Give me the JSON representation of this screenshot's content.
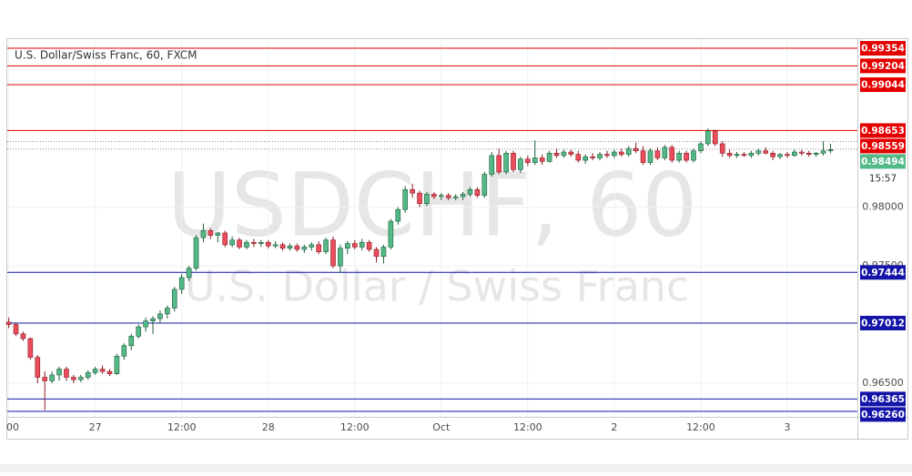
{
  "chart_data": {
    "type": "candlestick",
    "title": "U.S. Dollar/Swiss Franc, 60, FXCM",
    "watermark": [
      "USDCHF, 60",
      "U.S. Dollar / Swiss Franc"
    ],
    "categories": [
      "00",
      null,
      null,
      null,
      null,
      null,
      null,
      null,
      null,
      null,
      null,
      null,
      "27",
      null,
      null,
      null,
      null,
      null,
      null,
      null,
      null,
      null,
      null,
      null,
      "12:00",
      null,
      null,
      null,
      null,
      null,
      null,
      null,
      null,
      null,
      null,
      null,
      "28",
      null,
      null,
      null,
      null,
      null,
      null,
      null,
      null,
      null,
      null,
      null,
      "12:00",
      null,
      null,
      null,
      null,
      null,
      null,
      null,
      null,
      null,
      null,
      null,
      "Oct",
      null,
      null,
      null,
      null,
      null,
      null,
      null,
      null,
      null,
      null,
      null,
      "12:00",
      null,
      null,
      null,
      null,
      null,
      null,
      null,
      null,
      null,
      null,
      null,
      "2",
      null,
      null,
      null,
      null,
      null,
      null,
      null,
      null,
      null,
      null,
      null,
      "12:00",
      null,
      null,
      null,
      null,
      null,
      null,
      null,
      null,
      null,
      null,
      null,
      "3",
      null,
      null,
      null,
      null,
      null,
      null
    ],
    "ohlc": [
      [
        0.9702,
        0.9706,
        0.9697,
        0.97
      ],
      [
        0.97,
        0.9702,
        0.969,
        0.9692
      ],
      [
        0.9692,
        0.9694,
        0.9686,
        0.9688
      ],
      [
        0.9688,
        0.9689,
        0.967,
        0.9672
      ],
      [
        0.9672,
        0.9674,
        0.965,
        0.9655
      ],
      [
        0.9655,
        0.966,
        0.9627,
        0.9652
      ],
      [
        0.9652,
        0.966,
        0.965,
        0.9657
      ],
      [
        0.9657,
        0.9664,
        0.9652,
        0.9662
      ],
      [
        0.9662,
        0.9664,
        0.9652,
        0.9655
      ],
      [
        0.9655,
        0.9657,
        0.965,
        0.9653
      ],
      [
        0.9653,
        0.9657,
        0.9651,
        0.9655
      ],
      [
        0.9655,
        0.9661,
        0.9653,
        0.9659
      ],
      [
        0.9659,
        0.9664,
        0.9657,
        0.9662
      ],
      [
        0.9662,
        0.9665,
        0.9658,
        0.966
      ],
      [
        0.966,
        0.9662,
        0.9656,
        0.9658
      ],
      [
        0.9658,
        0.9675,
        0.9657,
        0.9673
      ],
      [
        0.9673,
        0.9684,
        0.967,
        0.9682
      ],
      [
        0.9682,
        0.9692,
        0.9678,
        0.969
      ],
      [
        0.969,
        0.97,
        0.9688,
        0.9698
      ],
      [
        0.9698,
        0.9706,
        0.9694,
        0.9703
      ],
      [
        0.9703,
        0.9707,
        0.9692,
        0.9705
      ],
      [
        0.9705,
        0.9712,
        0.9701,
        0.9709
      ],
      [
        0.9709,
        0.9716,
        0.9705,
        0.9714
      ],
      [
        0.9714,
        0.9732,
        0.9711,
        0.973
      ],
      [
        0.973,
        0.9743,
        0.9726,
        0.974
      ],
      [
        0.974,
        0.975,
        0.9737,
        0.9748
      ],
      [
        0.9748,
        0.9776,
        0.9746,
        0.9774
      ],
      [
        0.9774,
        0.9786,
        0.977,
        0.978
      ],
      [
        0.978,
        0.9782,
        0.9773,
        0.9776
      ],
      [
        0.9776,
        0.9779,
        0.977,
        0.9778
      ],
      [
        0.9778,
        0.978,
        0.9766,
        0.9768
      ],
      [
        0.9768,
        0.9775,
        0.9766,
        0.9772
      ],
      [
        0.9772,
        0.9774,
        0.9764,
        0.9766
      ],
      [
        0.9766,
        0.9772,
        0.9764,
        0.977
      ],
      [
        0.977,
        0.9773,
        0.9766,
        0.9769
      ],
      [
        0.9769,
        0.9772,
        0.9766,
        0.977
      ],
      [
        0.977,
        0.9772,
        0.9765,
        0.9767
      ],
      [
        0.9767,
        0.9771,
        0.9765,
        0.9768
      ],
      [
        0.9768,
        0.977,
        0.9763,
        0.9765
      ],
      [
        0.9765,
        0.9769,
        0.9763,
        0.9767
      ],
      [
        0.9767,
        0.9769,
        0.9762,
        0.9764
      ],
      [
        0.9764,
        0.9768,
        0.9761,
        0.9766
      ],
      [
        0.9766,
        0.977,
        0.9763,
        0.9768
      ],
      [
        0.9768,
        0.9771,
        0.976,
        0.9762
      ],
      [
        0.9762,
        0.9774,
        0.976,
        0.9772
      ],
      [
        0.9772,
        0.9775,
        0.9748,
        0.975
      ],
      [
        0.975,
        0.9768,
        0.9744,
        0.9765
      ],
      [
        0.9765,
        0.9771,
        0.976,
        0.9769
      ],
      [
        0.9769,
        0.9772,
        0.9764,
        0.9766
      ],
      [
        0.9766,
        0.9773,
        0.9763,
        0.977
      ],
      [
        0.977,
        0.9772,
        0.9762,
        0.9764
      ],
      [
        0.9764,
        0.9766,
        0.9753,
        0.9758
      ],
      [
        0.9758,
        0.9768,
        0.9752,
        0.9766
      ],
      [
        0.9766,
        0.979,
        0.9764,
        0.9788
      ],
      [
        0.9788,
        0.98,
        0.9785,
        0.9798
      ],
      [
        0.9798,
        0.9818,
        0.9795,
        0.9815
      ],
      [
        0.9815,
        0.982,
        0.9808,
        0.9812
      ],
      [
        0.9812,
        0.9814,
        0.98,
        0.9803
      ],
      [
        0.9803,
        0.9813,
        0.9801,
        0.9811
      ],
      [
        0.9811,
        0.9813,
        0.9807,
        0.9809
      ],
      [
        0.9809,
        0.9812,
        0.9806,
        0.981
      ],
      [
        0.981,
        0.9812,
        0.9806,
        0.9808
      ],
      [
        0.9808,
        0.9811,
        0.9806,
        0.9809
      ],
      [
        0.9809,
        0.9813,
        0.9806,
        0.9811
      ],
      [
        0.9811,
        0.9817,
        0.9809,
        0.9815
      ],
      [
        0.9815,
        0.9817,
        0.9808,
        0.981
      ],
      [
        0.981,
        0.983,
        0.9808,
        0.9828
      ],
      [
        0.9828,
        0.9847,
        0.9826,
        0.9844
      ],
      [
        0.9844,
        0.985,
        0.9828,
        0.983
      ],
      [
        0.983,
        0.9848,
        0.9828,
        0.9846
      ],
      [
        0.9846,
        0.9848,
        0.983,
        0.9832
      ],
      [
        0.9832,
        0.9843,
        0.9829,
        0.9841
      ],
      [
        0.9841,
        0.9844,
        0.9835,
        0.9838
      ],
      [
        0.9838,
        0.9857,
        0.9836,
        0.9842
      ],
      [
        0.9842,
        0.9845,
        0.9836,
        0.9839
      ],
      [
        0.9839,
        0.9848,
        0.9838,
        0.9846
      ],
      [
        0.9846,
        0.985,
        0.9842,
        0.9844
      ],
      [
        0.9844,
        0.9849,
        0.9842,
        0.9847
      ],
      [
        0.9847,
        0.9849,
        0.9843,
        0.9845
      ],
      [
        0.9845,
        0.9848,
        0.9838,
        0.984
      ],
      [
        0.984,
        0.9845,
        0.9837,
        0.9843
      ],
      [
        0.9843,
        0.9846,
        0.984,
        0.9842
      ],
      [
        0.9842,
        0.9847,
        0.984,
        0.9845
      ],
      [
        0.9845,
        0.9848,
        0.9842,
        0.9844
      ],
      [
        0.9844,
        0.9849,
        0.9842,
        0.9847
      ],
      [
        0.9847,
        0.985,
        0.9843,
        0.9845
      ],
      [
        0.9845,
        0.9852,
        0.9843,
        0.985
      ],
      [
        0.985,
        0.9855,
        0.9846,
        0.9848
      ],
      [
        0.9848,
        0.9852,
        0.9836,
        0.9838
      ],
      [
        0.9838,
        0.985,
        0.9836,
        0.9848
      ],
      [
        0.9848,
        0.9851,
        0.984,
        0.9842
      ],
      [
        0.9842,
        0.9853,
        0.984,
        0.9851
      ],
      [
        0.9851,
        0.9853,
        0.9838,
        0.984
      ],
      [
        0.984,
        0.9848,
        0.9838,
        0.9846
      ],
      [
        0.9846,
        0.9848,
        0.9838,
        0.984
      ],
      [
        0.984,
        0.985,
        0.9838,
        0.9848
      ],
      [
        0.9848,
        0.9856,
        0.9846,
        0.9854
      ],
      [
        0.9854,
        0.9867,
        0.9852,
        0.9865
      ],
      [
        0.9865,
        0.9866,
        0.9852,
        0.9854
      ],
      [
        0.9854,
        0.9856,
        0.9843,
        0.9846
      ],
      [
        0.9846,
        0.9849,
        0.9842,
        0.9844
      ],
      [
        0.9844,
        0.9847,
        0.9842,
        0.9845
      ],
      [
        0.9845,
        0.9847,
        0.9843,
        0.9844
      ],
      [
        0.9844,
        0.9848,
        0.9842,
        0.9846
      ],
      [
        0.9846,
        0.985,
        0.9844,
        0.9848
      ],
      [
        0.9848,
        0.9851,
        0.9845,
        0.9846
      ],
      [
        0.9846,
        0.9848,
        0.984,
        0.9843
      ],
      [
        0.9843,
        0.9846,
        0.9841,
        0.9845
      ],
      [
        0.9845,
        0.9847,
        0.9842,
        0.9844
      ],
      [
        0.9844,
        0.9849,
        0.9843,
        0.9847
      ],
      [
        0.9847,
        0.9849,
        0.9844,
        0.9846
      ],
      [
        0.9846,
        0.9848,
        0.9843,
        0.9845
      ],
      [
        0.9845,
        0.9847,
        0.9843,
        0.9846
      ],
      [
        0.9846,
        0.9856,
        0.9844,
        0.9848
      ],
      [
        0.9848,
        0.9854,
        0.9846,
        0.9849
      ]
    ],
    "up_color": "#53b987",
    "down_color": "#eb4d5c",
    "ylim": [
      0.96213,
      0.99432
    ],
    "yticks": [
      {
        "value": 0.98,
        "label": "0.98000"
      },
      {
        "value": 0.975,
        "label": "0.97500"
      },
      {
        "value": 0.965,
        "label": "0.96500"
      }
    ],
    "grid": true,
    "levels": [
      {
        "value": 0.99354,
        "color": "#e50000"
      },
      {
        "value": 0.99204,
        "color": "#e50000"
      },
      {
        "value": 0.99044,
        "color": "#e50000"
      },
      {
        "value": 0.98653,
        "color": "#e50000"
      },
      {
        "value": 0.98559,
        "color": "#e50000",
        "dotted": true
      },
      {
        "value": 0.97444,
        "color": "#1414a8"
      },
      {
        "value": 0.97012,
        "color": "#1414a8"
      },
      {
        "value": 0.96365,
        "color": "#1414a8"
      },
      {
        "value": 0.9626,
        "label": "0.96260",
        "color": "#1414a8"
      }
    ],
    "last_price": 0.98494,
    "last_color": "#53b987",
    "countdown": "15:57"
  }
}
